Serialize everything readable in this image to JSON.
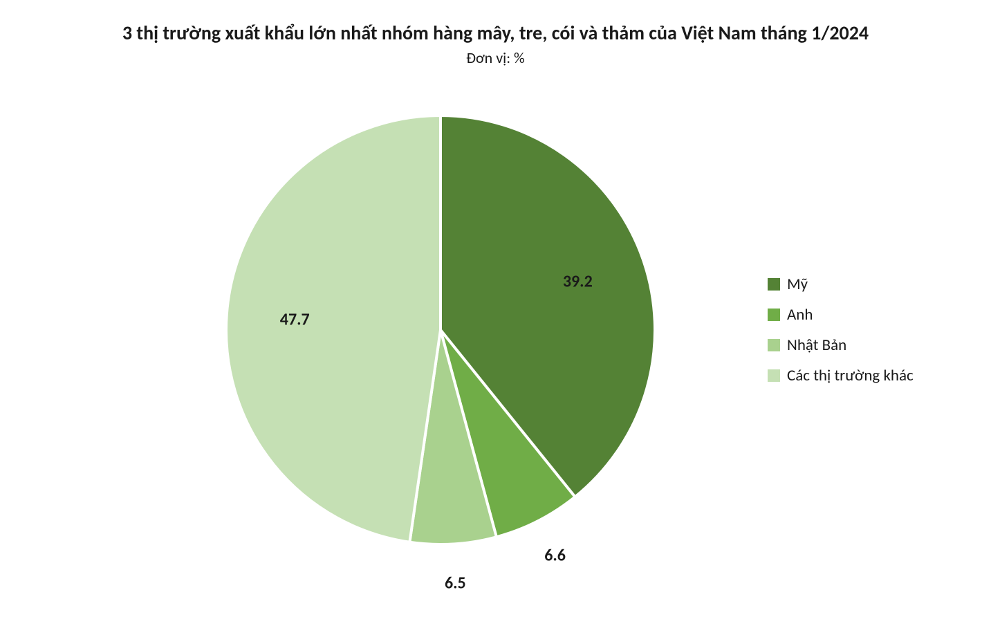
{
  "chart": {
    "type": "pie",
    "title": "3 thị trường xuất khẩu lớn nhất nhóm hàng mây, tre, cói và thảm của Việt Nam tháng 1/2024",
    "subtitle": "Đơn vị: %",
    "title_fontsize": 28,
    "title_fontweight": "bold",
    "subtitle_fontsize": 22,
    "background_color": "#ffffff",
    "pie_radius": 310,
    "slice_border_color": "#ffffff",
    "slice_border_width": 4,
    "start_angle": -90,
    "slices": [
      {
        "label": "Mỹ",
        "value": 39.2,
        "color": "#548235"
      },
      {
        "label": "Anh",
        "value": 6.6,
        "color": "#70ad47"
      },
      {
        "label": "Nhật Bản",
        "value": 6.5,
        "color": "#a9d18e"
      },
      {
        "label": "Các thị trường khác",
        "value": 47.7,
        "color": "#c5e0b4"
      }
    ],
    "data_label_fontsize": 24,
    "data_label_fontweight": "bold",
    "data_label_color": "#1a1a1a",
    "data_label_offset_factor": 1.18,
    "legend": {
      "position": "right",
      "fontsize": 23,
      "swatch_size": 18,
      "item_spacing": 16
    }
  }
}
